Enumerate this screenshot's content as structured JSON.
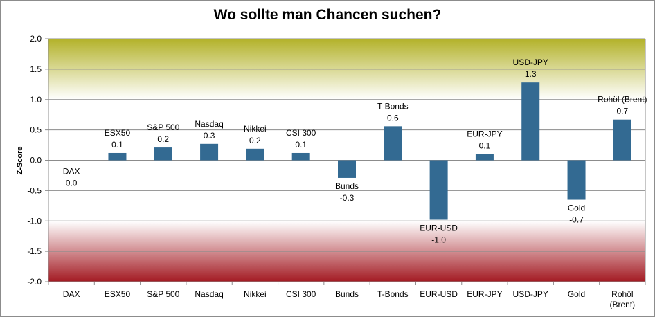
{
  "chart_data": {
    "type": "bar",
    "title": "Wo sollte man Chancen suchen?",
    "xlabel": "",
    "ylabel": "Z-Score",
    "ylim": [
      -2.0,
      2.0
    ],
    "yticks": [
      "2.0",
      "1.5",
      "1.0",
      "0.5",
      "0.0",
      "-0.5",
      "-1.0",
      "-1.5",
      "-2.0"
    ],
    "categories": [
      "DAX",
      "ESX50",
      "S&P 500",
      "Nasdaq",
      "Nikkei",
      "CSI 300",
      "Bunds",
      "T-Bonds",
      "EUR-USD",
      "EUR-JPY",
      "USD-JPY",
      "Gold",
      "Rohöl (Brent)"
    ],
    "category_axis_labels": [
      [
        "DAX"
      ],
      [
        "ESX50"
      ],
      [
        "S&P 500"
      ],
      [
        "Nasdaq"
      ],
      [
        "Nikkei"
      ],
      [
        "CSI 300"
      ],
      [
        "Bunds"
      ],
      [
        "T-Bonds"
      ],
      [
        "EUR-USD"
      ],
      [
        "EUR-JPY"
      ],
      [
        "USD-JPY"
      ],
      [
        "Gold"
      ],
      [
        "Rohöl",
        "(Brent)"
      ]
    ],
    "values": [
      0.0,
      0.12,
      0.21,
      0.27,
      0.19,
      0.12,
      -0.29,
      0.56,
      -0.98,
      0.1,
      1.28,
      -0.65,
      0.67
    ],
    "data_labels": [
      "0.0",
      "0.1",
      "0.2",
      "0.3",
      "0.2",
      "0.1",
      "-0.3",
      "0.6",
      "-1.0",
      "0.1",
      "1.3",
      "-0.7",
      "0.7"
    ],
    "bar_color": "#336a92",
    "background_bands": {
      "top_color": "#b3b22a",
      "bottom_color": "#a31a22",
      "neutral_color": "#ffffff",
      "upper_band_from": 1.0,
      "lower_band_to": -1.0
    },
    "grid": true,
    "legend": "none"
  }
}
